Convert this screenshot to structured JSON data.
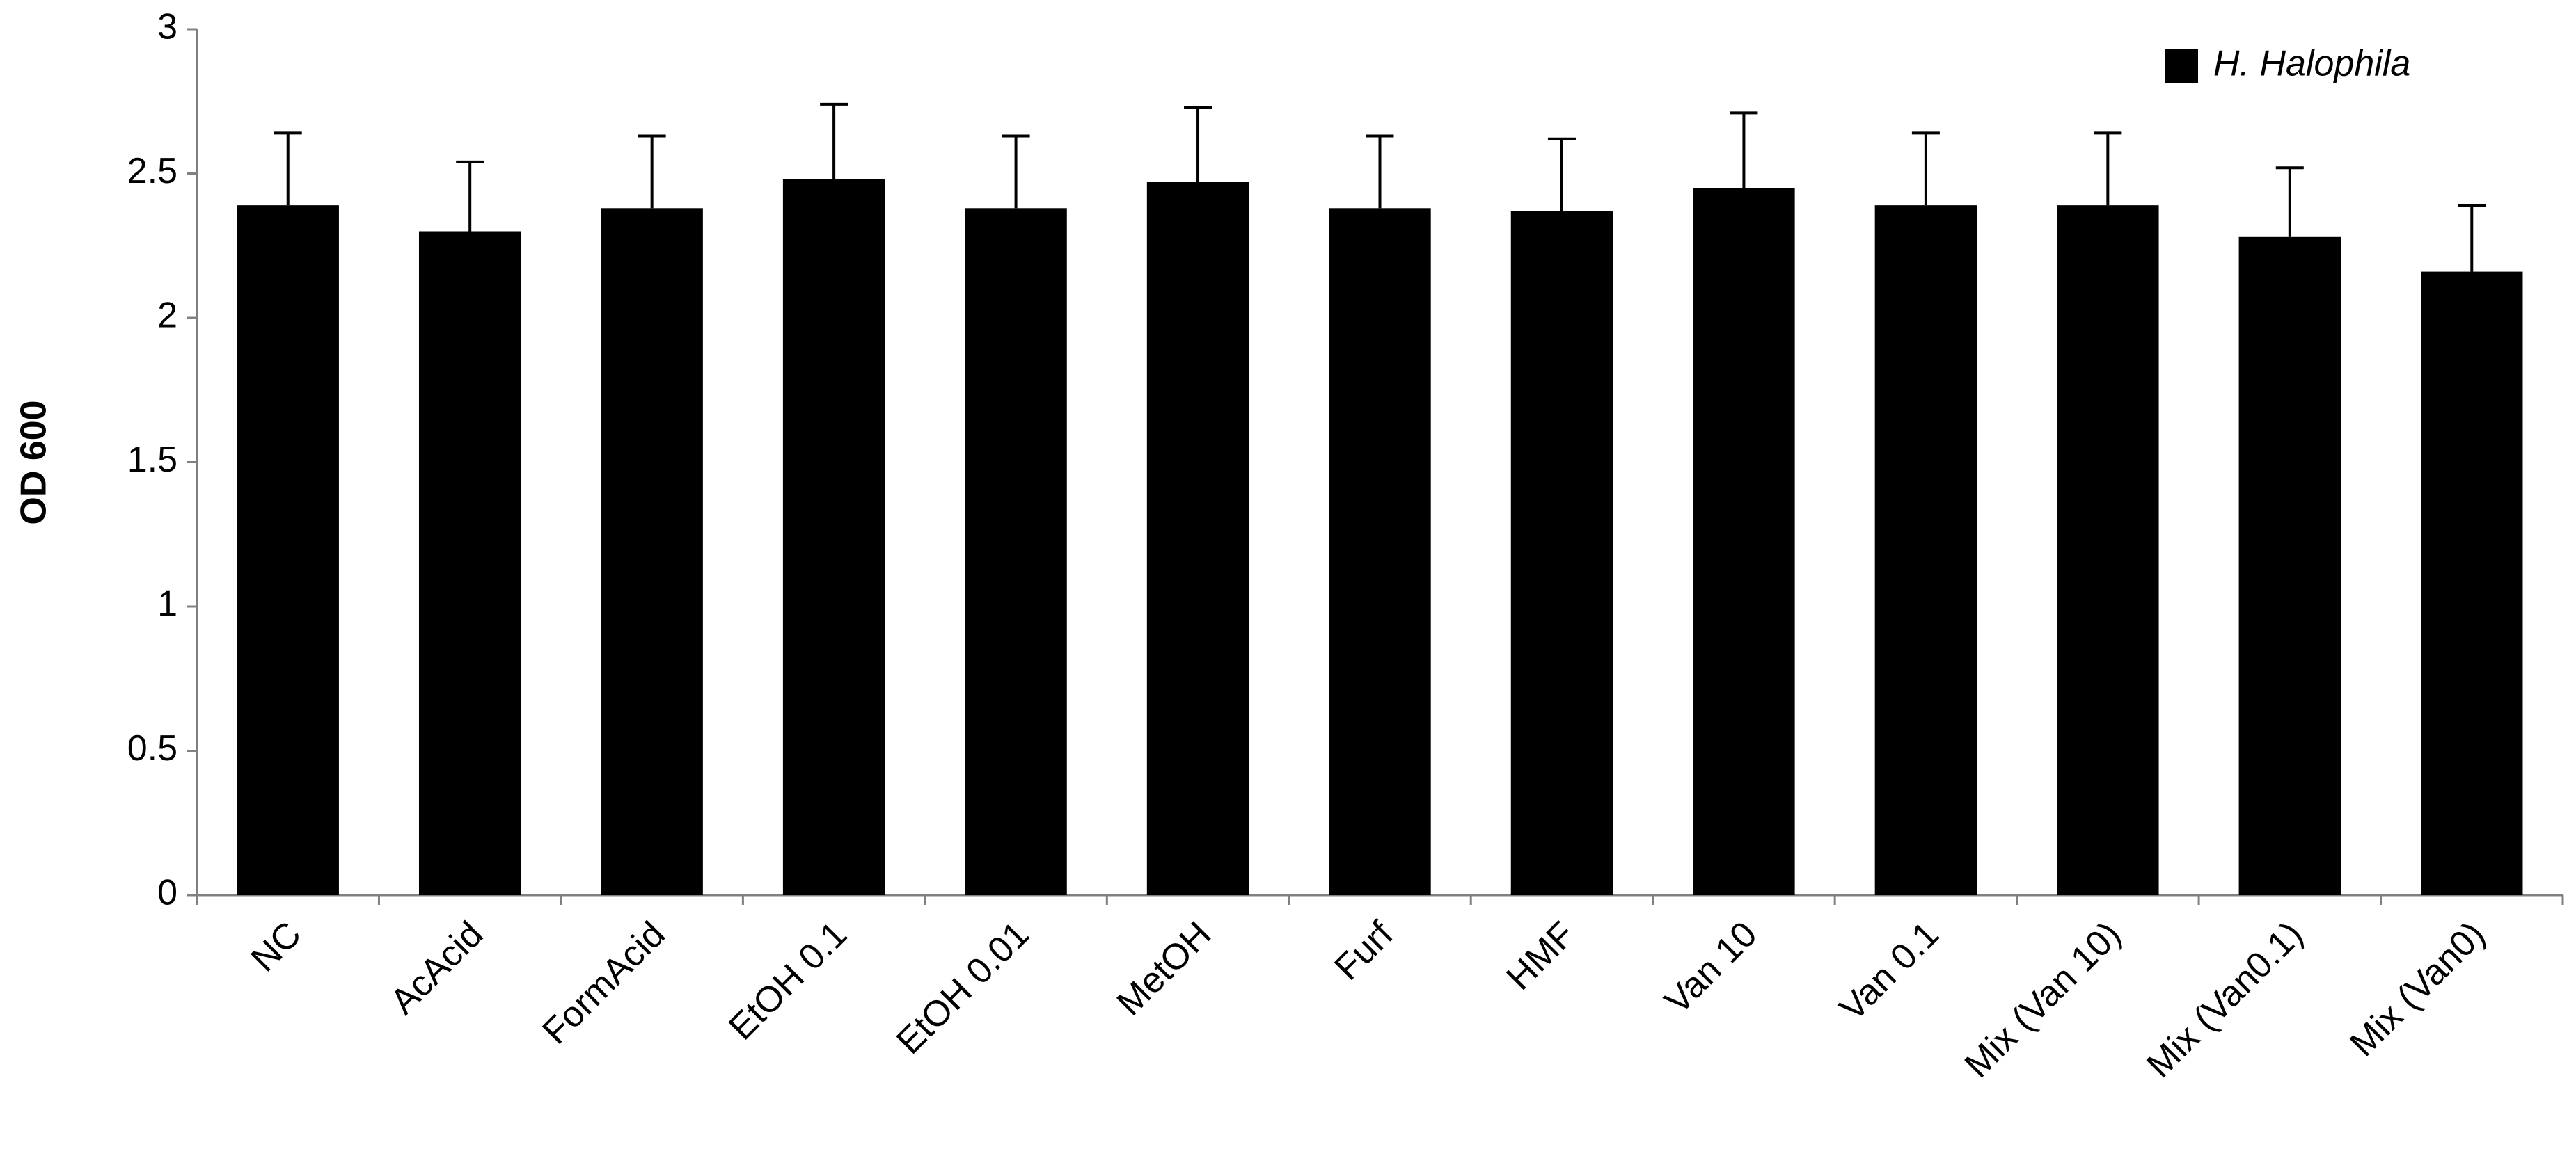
{
  "chart_data": {
    "type": "bar",
    "y_label": "OD 600",
    "categories": [
      "NC",
      "AcAcid",
      "FormAcid",
      "EtOH 0.1",
      "EtOH 0.01",
      "MetOH",
      "Furf",
      "HMF",
      "Van 10",
      "Van 0.1",
      "Mix (Van 10)",
      "Mix (Van0.1)",
      "Mix (Van0)"
    ],
    "series": [
      {
        "name": "H. Halophila",
        "color": "#000000",
        "values": [
          2.39,
          2.3,
          2.38,
          2.48,
          2.38,
          2.47,
          2.38,
          2.37,
          2.45,
          2.39,
          2.39,
          2.28,
          2.16
        ],
        "errors": [
          0.25,
          0.24,
          0.25,
          0.26,
          0.25,
          0.26,
          0.25,
          0.25,
          0.26,
          0.25,
          0.25,
          0.24,
          0.23
        ]
      }
    ],
    "ylim": [
      0,
      3
    ],
    "yticks": [
      0,
      0.5,
      1,
      1.5,
      2,
      2.5,
      3
    ],
    "legend": "top-right"
  }
}
